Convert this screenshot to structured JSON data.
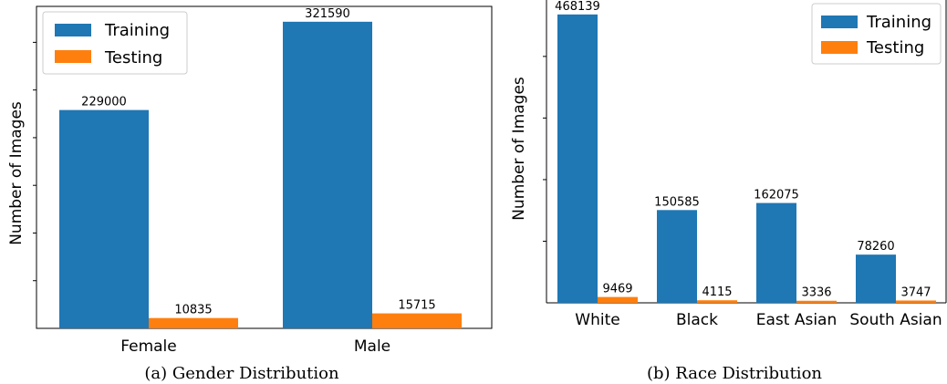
{
  "chart_data": [
    {
      "type": "bar",
      "categories": [
        "Female",
        "Male"
      ],
      "series": [
        {
          "name": "Training",
          "values": [
            229000,
            321590
          ]
        },
        {
          "name": "Testing",
          "values": [
            10835,
            15715
          ]
        }
      ],
      "xlabel": "",
      "ylabel": "Number of Images",
      "ylim": [
        0,
        337700
      ],
      "grid": false,
      "legend": "upper-left",
      "caption": "(a)  Gender Distribution"
    },
    {
      "type": "bar",
      "categories": [
        "White",
        "Black",
        "East Asian",
        "South Asian"
      ],
      "series": [
        {
          "name": "Training",
          "values": [
            468139,
            150585,
            162075,
            78260
          ]
        },
        {
          "name": "Testing",
          "values": [
            9469,
            4115,
            3336,
            3747
          ]
        }
      ],
      "xlabel": "",
      "ylabel": "Number of Images",
      "ylim": [
        0,
        491600
      ],
      "grid": false,
      "legend": "upper-right",
      "caption": "(b)  Race Distribution"
    }
  ],
  "colors": {
    "training": "#1f77b4",
    "testing": "#ff7f0e"
  }
}
